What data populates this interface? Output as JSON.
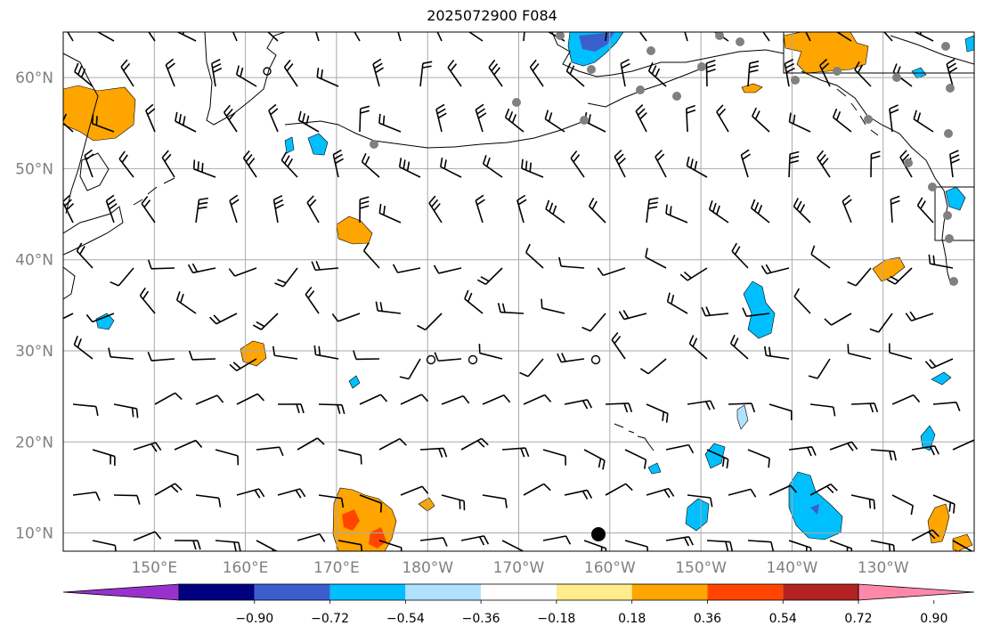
{
  "title": "2025072900 F084",
  "map": {
    "lat_labels": [
      "60°N",
      "50°N",
      "40°N",
      "30°N",
      "20°N",
      "10°N"
    ],
    "lon_labels": [
      "150°E",
      "160°E",
      "170°E",
      "180°W",
      "170°W",
      "160°W",
      "150°W",
      "140°W",
      "130°W"
    ],
    "lat_range": [
      8,
      65
    ],
    "lon_range": [
      140,
      240
    ],
    "grid": true,
    "colors": {
      "grid": "#a9a9a9",
      "coast": "#000000",
      "barb": "#000000",
      "station_grey": "#808080"
    }
  },
  "colorbar": {
    "colors": [
      "#9932cc",
      "#000080",
      "#3a5fcd",
      "#00bfff",
      "#b0e2ff",
      "#ffffff",
      "#ffec8b",
      "#ffa500",
      "#ff4500",
      "#b22222",
      "#ff88aa"
    ],
    "tick_labels": [
      "−0.90",
      "−0.72",
      "−0.54",
      "−0.36",
      "−0.18",
      "0.18",
      "0.36",
      "0.54",
      "0.72",
      "0.90"
    ]
  }
}
